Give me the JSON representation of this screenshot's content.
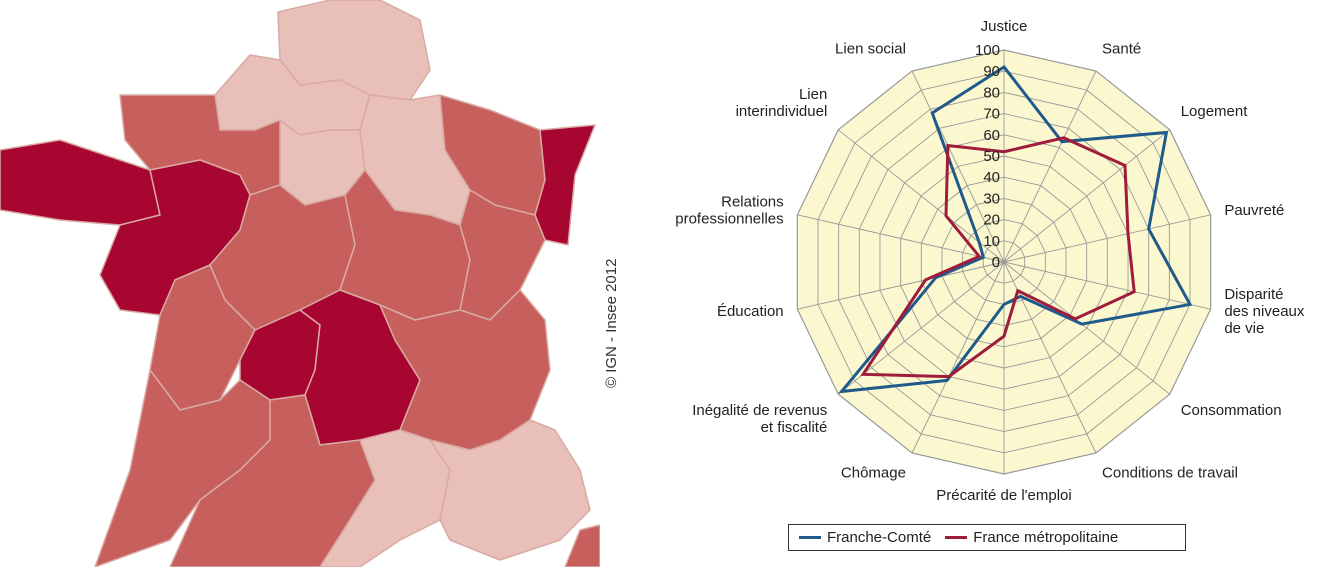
{
  "map": {
    "credit": "© IGN - Insee 2012",
    "colors": {
      "dark": "#A6062F",
      "medium": "#C7605D",
      "light": "#E8BFB9",
      "border": "#D9A9A3"
    }
  },
  "chart_data": {
    "type": "radar",
    "axes": [
      "Justice",
      "Santé",
      "Logement",
      "Pauvreté",
      "Disparité des niveaux de vie",
      "Consommation",
      "Conditions de travail",
      "Précarité de l'emploi",
      "Chômage",
      "Inégalité de revenus et fiscalité",
      "Éducation",
      "Relations professionnelles",
      "Lien interindividuel",
      "Lien social"
    ],
    "axis_label_lines": [
      [
        "Justice"
      ],
      [
        "Santé"
      ],
      [
        "Logement"
      ],
      [
        "Pauvreté"
      ],
      [
        "Disparité",
        "des niveaux",
        "de vie"
      ],
      [
        "Consommation"
      ],
      [
        "Conditions de travail"
      ],
      [
        "Précarité de l'emploi"
      ],
      [
        "Chômage"
      ],
      [
        "Inégalité de revenus",
        "et fiscalité"
      ],
      [
        "Éducation"
      ],
      [
        "Relations",
        "professionnelles"
      ],
      [
        "Lien",
        "interindividuel"
      ],
      [
        "Lien social"
      ]
    ],
    "ticks": [
      0,
      10,
      20,
      30,
      40,
      50,
      60,
      70,
      80,
      90,
      100
    ],
    "range": [
      0,
      100
    ],
    "series": [
      {
        "name": "Franche-Comté",
        "color": "#1F5A8A",
        "values": [
          92,
          63,
          98,
          70,
          90,
          47,
          18,
          20,
          62,
          98,
          33,
          10,
          15,
          78
        ]
      },
      {
        "name": "France métropolitaine",
        "color": "#A01C3B",
        "values": [
          52,
          65,
          73,
          60,
          63,
          43,
          15,
          35,
          60,
          85,
          38,
          12,
          35,
          61
        ]
      }
    ],
    "background_color": "#FBF8CF",
    "grid_color": "#999999"
  }
}
